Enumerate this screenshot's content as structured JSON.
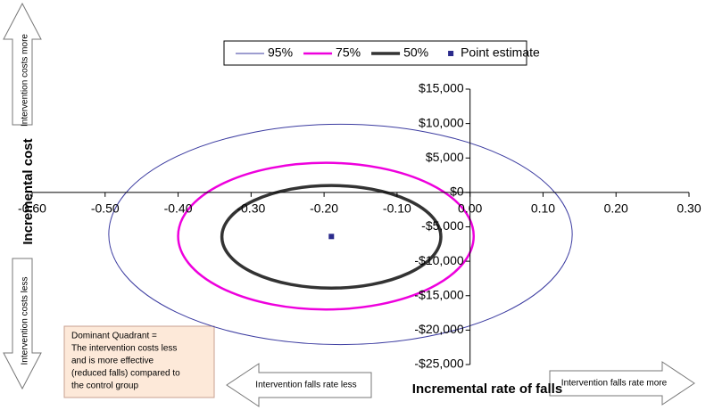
{
  "chart_data": {
    "type": "ellipse",
    "x_label": "Incremental rate of falls",
    "y_label": "Incremental cost",
    "xlim": [
      -0.6,
      0.3
    ],
    "ylim": [
      -25000,
      15000
    ],
    "xticks": [
      {
        "value": -0.6,
        "label": "-0.60"
      },
      {
        "value": -0.5,
        "label": "-0.50"
      },
      {
        "value": -0.4,
        "label": "-0.40"
      },
      {
        "value": -0.3,
        "label": "-0.30"
      },
      {
        "value": -0.2,
        "label": "-0.20"
      },
      {
        "value": -0.1,
        "label": "-0.10"
      },
      {
        "value": 0,
        "label": "0.00"
      },
      {
        "value": 0.1,
        "label": "0.10"
      },
      {
        "value": 0.2,
        "label": "0.20"
      },
      {
        "value": 0.3,
        "label": "0.30"
      }
    ],
    "yticks": [
      {
        "value": 15000,
        "label": "$15,000"
      },
      {
        "value": 10000,
        "label": "$10,000"
      },
      {
        "value": 5000,
        "label": "$5,000"
      },
      {
        "value": 0,
        "label": "$0"
      },
      {
        "value": -5000,
        "label": "-$5,000"
      },
      {
        "value": -10000,
        "label": "-$10,000"
      },
      {
        "value": -15000,
        "label": "-$15,000"
      },
      {
        "value": -20000,
        "label": "-$20,000"
      },
      {
        "value": -25000,
        "label": "-$25,000"
      }
    ],
    "series": [
      {
        "name": "95%",
        "color": "#3b3ba0",
        "width": 1,
        "x_extent": [
          -0.495,
          0.14
        ],
        "y_extent": [
          -22100,
          9900
        ]
      },
      {
        "name": "75%",
        "color": "#ee00dd",
        "width": 2.5,
        "x_extent": [
          -0.4,
          0.005
        ],
        "y_extent": [
          -17000,
          4300
        ]
      },
      {
        "name": "50%",
        "color": "#333333",
        "width": 3.5,
        "x_extent": [
          -0.34,
          -0.04
        ],
        "y_extent": [
          -13900,
          1000
        ]
      }
    ],
    "point": {
      "name": "Point estimate",
      "color": "#2b2b8c",
      "x": -0.19,
      "y": -6400
    },
    "legend": "top",
    "quadrant_labels": {
      "up": "Intervention costs more",
      "down": "Intervention costs less",
      "left": "Intervention falls rate less",
      "right": "Intervention falls rate more"
    },
    "note": [
      "Dominant Quadrant =",
      "The intervention costs less",
      "and is more effective",
      "(reduced falls) compared to",
      "the control group"
    ]
  }
}
